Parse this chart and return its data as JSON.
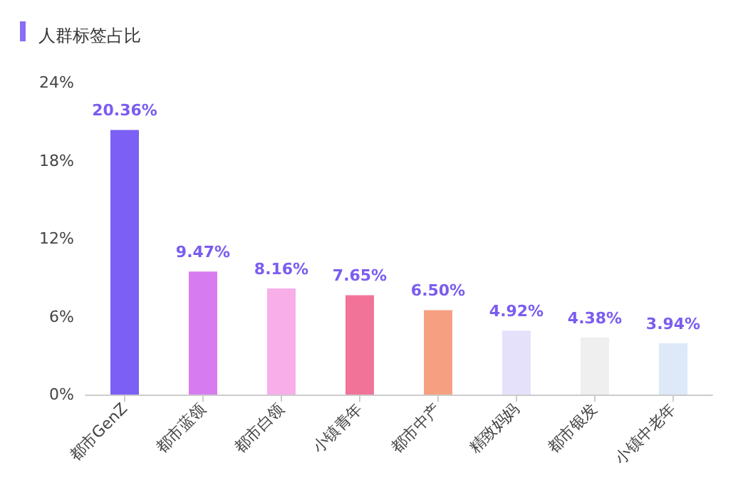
{
  "chart_data": {
    "type": "bar",
    "title": "人群标签占比",
    "categories": [
      "都市GenZ",
      "都市蓝领",
      "都市白领",
      "小镇青年",
      "都市中产",
      "精致妈妈",
      "都市银发",
      "小镇中老年"
    ],
    "values": [
      20.36,
      9.47,
      8.16,
      7.65,
      6.5,
      4.92,
      4.38,
      3.94
    ],
    "colors": [
      "#7c5ff5",
      "#d77cf0",
      "#f8aee9",
      "#f27398",
      "#f6a081",
      "#e6e1fb",
      "#efefef",
      "#dde8f9"
    ],
    "value_labels": [
      "20.36%",
      "9.47%",
      "8.16%",
      "7.65%",
      "6.50%",
      "4.92%",
      "4.38%",
      "3.94%"
    ],
    "ylim": [
      0,
      24
    ],
    "yticks": [
      {
        "value": 0,
        "label": "0%"
      },
      {
        "value": 6,
        "label": "6%"
      },
      {
        "value": 12,
        "label": "12%"
      },
      {
        "value": 18,
        "label": "18%"
      },
      {
        "value": 24,
        "label": "24%"
      }
    ],
    "grid": false
  }
}
